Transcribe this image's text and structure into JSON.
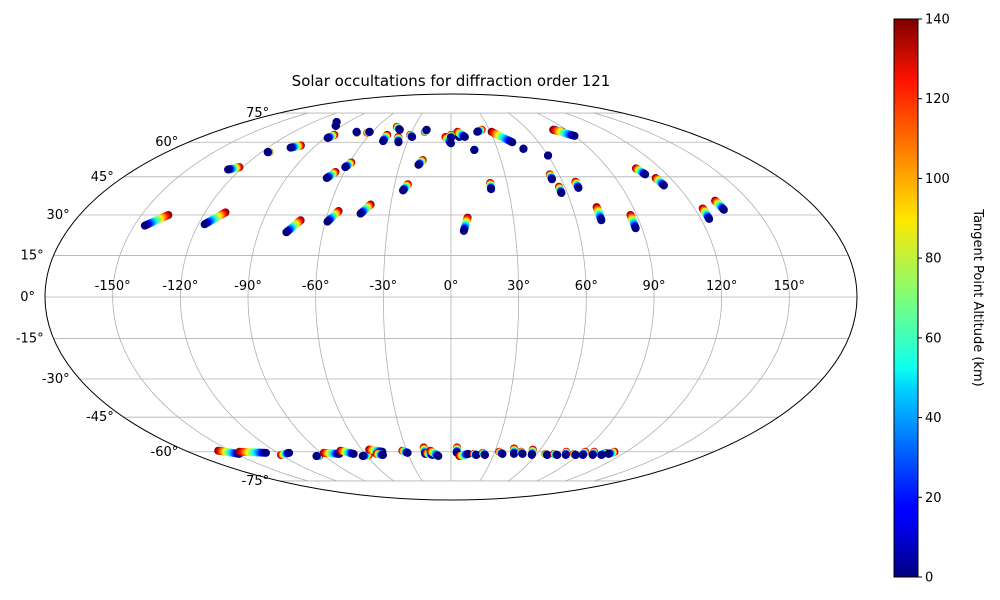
{
  "chart_data": {
    "type": "scatter",
    "projection": "mollweide",
    "title": "Solar occultations for diffraction order 121",
    "xlabel": "",
    "ylabel": "",
    "xlim": [
      -180,
      180
    ],
    "ylim": [
      -90,
      90
    ],
    "grid": true,
    "x_tick_values": [
      -150,
      -120,
      -90,
      -60,
      -30,
      0,
      30,
      60,
      90,
      120,
      150
    ],
    "x_tick_labels": [
      "-150°",
      "-120°",
      "-90°",
      "-60°",
      "-30°",
      "0°",
      "30°",
      "60°",
      "90°",
      "120°",
      "150°"
    ],
    "y_tick_values": [
      75,
      60,
      45,
      30,
      15,
      0,
      -15,
      -30,
      -45,
      -60,
      -75
    ],
    "y_tick_labels": [
      "75°",
      "60°",
      "45°",
      "30°",
      "15°",
      "0°",
      "-15°",
      "-30°",
      "-45°",
      "-60°",
      "-75°"
    ],
    "colorbar": {
      "label": "Tangent Point Altitude (km)",
      "min": 0,
      "max": 140,
      "colormap": "jet",
      "tick_values": [
        0,
        20,
        40,
        60,
        80,
        100,
        120,
        140
      ],
      "tick_labels": [
        "0",
        "20",
        "40",
        "60",
        "80",
        "100",
        "120",
        "140"
      ]
    },
    "altitude_range_km": [
      0,
      140
    ],
    "series": [
      {
        "name": "north_occultation_tracks",
        "tracks": [
          {
            "lon0": -145,
            "lat0": 26.0,
            "lon1": -137,
            "lat1": 30.0
          },
          {
            "lon0": -117,
            "lat0": 26.5,
            "lon1": -110,
            "lat1": 31.0
          },
          {
            "lon0": -77,
            "lat0": 23.5,
            "lon1": -72,
            "lat1": 28.0
          },
          {
            "lon0": -59,
            "lat0": 27.5,
            "lon1": -55,
            "lat1": 31.5
          },
          {
            "lon0": -44,
            "lat0": 30.5,
            "lon1": -40,
            "lat1": 34.0
          },
          {
            "lon0": 6,
            "lat0": 24.0,
            "lon1": 8,
            "lat1": 29.0
          },
          {
            "lon0": 72,
            "lat0": 28.0,
            "lon1": 72,
            "lat1": 33.0
          },
          {
            "lon0": 87,
            "lat0": 25.0,
            "lon1": 87,
            "lat1": 30.0
          },
          {
            "lon0": 124,
            "lat0": 28.5,
            "lon1": 124,
            "lat1": 32.5
          },
          {
            "lon0": 134,
            "lat0": 32.0,
            "lon1": 133,
            "lat1": 35.5
          },
          {
            "lon0": -127,
            "lat0": 48.0,
            "lon1": -122,
            "lat1": 49.0
          },
          {
            "lon0": -68,
            "lat0": 44.5,
            "lon1": -65,
            "lat1": 47.0
          },
          {
            "lon0": -61,
            "lat0": 49.0,
            "lon1": -59,
            "lat1": 51.0
          },
          {
            "lon0": -25,
            "lat0": 39.5,
            "lon1": -23,
            "lat1": 42.0
          },
          {
            "lon0": -19,
            "lat0": 50.0,
            "lon1": -17,
            "lat1": 52.0
          },
          {
            "lon0": 21,
            "lat0": 40.0,
            "lon1": 21,
            "lat1": 42.5
          },
          {
            "lon0": 55,
            "lat0": 44.0,
            "lon1": 55,
            "lat1": 46.0
          },
          {
            "lon0": 57,
            "lat0": 38.5,
            "lon1": 57,
            "lat1": 41.0
          },
          {
            "lon0": 67,
            "lat0": 40.5,
            "lon1": 67,
            "lat1": 43.0
          },
          {
            "lon0": 108,
            "lat0": 46.0,
            "lon1": 106,
            "lat1": 48.5
          },
          {
            "lon0": 113,
            "lat0": 41.5,
            "lon1": 112,
            "lat1": 44.5
          },
          {
            "lon0": -116,
            "lat0": 55.5,
            "lon1": -115,
            "lat1": 55.5
          },
          {
            "lon0": -105,
            "lat0": 57.5,
            "lon1": -100,
            "lat1": 58.5
          },
          {
            "lon0": -88,
            "lat0": 62.0,
            "lon1": -86,
            "lat1": 63.5
          },
          {
            "lon0": -72,
            "lat0": 65.0,
            "lon1": -71,
            "lat1": 64.5
          },
          {
            "lon0": -62,
            "lat0": 65.0,
            "lon1": -63,
            "lat1": 64.5
          },
          {
            "lon0": -47,
            "lat0": 60.5,
            "lon1": -47,
            "lat1": 63.5
          },
          {
            "lon0": -36,
            "lat0": 60.0,
            "lon1": -38,
            "lat1": 62.5
          },
          {
            "lon0": -28,
            "lat0": 62.5,
            "lon1": -30,
            "lat1": 63.5
          },
          {
            "lon0": -19,
            "lat0": 66.0,
            "lon1": -20,
            "lat1": 65.0
          },
          {
            "lon0": -40,
            "lat0": 66.0,
            "lon1": -44,
            "lat1": 67.5
          },
          {
            "lon0": 0,
            "lat0": 59.5,
            "lon1": -4,
            "lat1": 62.5
          },
          {
            "lon0": 6,
            "lat0": 62.5,
            "lon1": 4,
            "lat1": 63.5
          },
          {
            "lon0": 10,
            "lat0": 62.5,
            "lon1": 5,
            "lat1": 65.0
          },
          {
            "lon0": 0,
            "lat0": 62.0,
            "lon1": 0,
            "lat1": 63.5
          },
          {
            "lon0": 15,
            "lat0": 56.5,
            "lon1": 15,
            "lat1": 56.5
          },
          {
            "lon0": 20,
            "lat0": 65.0,
            "lon1": 24,
            "lat1": 66.0
          },
          {
            "lon0": 42,
            "lat0": 60.0,
            "lon1": 31,
            "lat1": 65.0
          },
          {
            "lon0": 47,
            "lat0": 57.0,
            "lon1": 47,
            "lat1": 57.0
          },
          {
            "lon0": 60,
            "lat0": 54.0,
            "lon1": 60,
            "lat1": 54.0
          },
          {
            "lon0": 80,
            "lat0": 66.0,
            "lon1": 85,
            "lat1": 65.0
          },
          {
            "lon0": 90,
            "lat0": 63.0,
            "lon1": 80,
            "lat1": 66.0
          },
          {
            "lon0": -100,
            "lat0": 70.0,
            "lon1": -100,
            "lat1": 70.0
          },
          {
            "lon0": -95,
            "lat0": 68.0,
            "lon1": -95,
            "lat1": 68.0
          }
        ]
      },
      {
        "name": "south_occultation_tracks",
        "tracks": [
          {
            "lon0": -148,
            "lat0": -61.0,
            "lon1": -158,
            "lat1": -59.5
          },
          {
            "lon0": -128,
            "lat0": -60.5,
            "lon1": -145,
            "lat1": -60.0
          },
          {
            "lon0": -112,
            "lat0": -60.5,
            "lon1": -120,
            "lat1": -61.5
          },
          {
            "lon0": -96,
            "lat0": -62.0,
            "lon1": -94,
            "lat1": -62.0
          },
          {
            "lon0": -78,
            "lat0": -61.0,
            "lon1": -88,
            "lat1": -60.5
          },
          {
            "lon0": -68,
            "lat0": -61.0,
            "lon1": -75,
            "lat1": -59.5
          },
          {
            "lon0": -63,
            "lat0": -62.0,
            "lon1": -58,
            "lat1": -61.5
          },
          {
            "lon0": -47,
            "lat0": -60.0,
            "lon1": -55,
            "lat1": -59.0
          },
          {
            "lon0": -48,
            "lat0": -61.5,
            "lon1": -52,
            "lat1": -61.0
          },
          {
            "lon0": -30,
            "lat0": -60.5,
            "lon1": -33,
            "lat1": -59.5
          },
          {
            "lon0": -18,
            "lat0": -61.0,
            "lon1": -18,
            "lat1": -58.0
          },
          {
            "lon0": -13,
            "lat0": -61.5,
            "lon1": -17,
            "lat1": -60.5
          },
          {
            "lon0": -9,
            "lat0": -62.0,
            "lon1": -14,
            "lat1": -59.5
          },
          {
            "lon0": 4,
            "lat0": -60.5,
            "lon1": 4,
            "lat1": -58.0
          },
          {
            "lon0": 12,
            "lat0": -61.0,
            "lon1": 6,
            "lat1": -62.0
          },
          {
            "lon0": 18,
            "lat0": -61.5,
            "lon1": 16,
            "lat1": -61.0
          },
          {
            "lon0": 24,
            "lat0": -61.5,
            "lon1": 22,
            "lat1": -60.5
          },
          {
            "lon0": 36,
            "lat0": -61.0,
            "lon1": 33,
            "lat1": -60.0
          },
          {
            "lon0": 44,
            "lat0": -61.0,
            "lon1": 42,
            "lat1": -58.5
          },
          {
            "lon0": 50,
            "lat0": -61.0,
            "lon1": 48,
            "lat1": -60.0
          },
          {
            "lon0": 57,
            "lat0": -61.5,
            "lon1": 55,
            "lat1": -59.0
          },
          {
            "lon0": 68,
            "lat0": -61.5,
            "lon1": 66,
            "lat1": -61.0
          },
          {
            "lon0": 75,
            "lat0": -61.5,
            "lon1": 72,
            "lat1": -61.0
          },
          {
            "lon0": 81,
            "lat0": -61.5,
            "lon1": 79,
            "lat1": -60.0
          },
          {
            "lon0": 88,
            "lat0": -61.5,
            "lon1": 86,
            "lat1": -61.0
          },
          {
            "lon0": 93,
            "lat0": -61.5,
            "lon1": 92,
            "lat1": -60.0
          },
          {
            "lon0": 100,
            "lat0": -61.5,
            "lon1": 98,
            "lat1": -60.0
          },
          {
            "lon0": 106,
            "lat0": -61.5,
            "lon1": 107,
            "lat1": -60.5
          },
          {
            "lon0": 110,
            "lat0": -61.0,
            "lon1": 112,
            "lat1": -60.0
          }
        ]
      }
    ]
  }
}
